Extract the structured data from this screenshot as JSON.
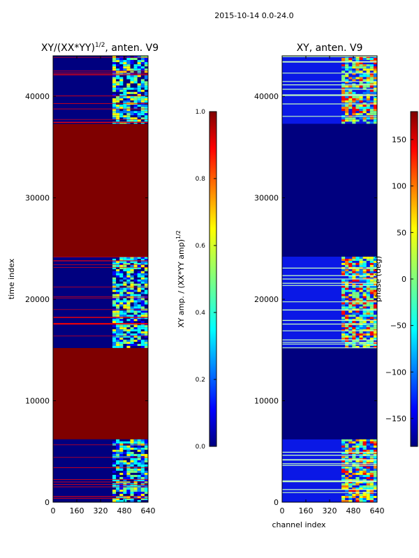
{
  "suptitle": "2015-10-14 0.0-24.0",
  "colors": {
    "jet": [
      "#00007f",
      "#0000ff",
      "#007fff",
      "#00ffff",
      "#7fff7f",
      "#ffff00",
      "#ff7f00",
      "#ff0000",
      "#7f0000"
    ]
  },
  "chart_data": [
    {
      "type": "heatmap",
      "title_text": "XY/(XX*YY)",
      "title_exponent": "1/2",
      "title_suffix": ", anten. V9",
      "xlabel": "",
      "ylabel": "time index",
      "xlim": [
        0,
        640
      ],
      "ylim": [
        0,
        44000
      ],
      "xticks": [
        0,
        160,
        320,
        480,
        640
      ],
      "yticks": [
        0,
        10000,
        20000,
        30000,
        40000
      ],
      "flagged_value": 1.0,
      "segments": [
        {
          "t0": 0,
          "t1": 6200,
          "kind": "data"
        },
        {
          "t0": 6200,
          "t1": 15200,
          "kind": "flagged"
        },
        {
          "t0": 15200,
          "t1": 24200,
          "kind": "data"
        },
        {
          "t0": 24200,
          "t1": 37300,
          "kind": "flagged"
        },
        {
          "t0": 37300,
          "t1": 44000,
          "kind": "data"
        }
      ],
      "active_channels": [
        400,
        640
      ],
      "colorbar": {
        "label_text": "XY amp. / (XX*YY amp)",
        "label_exponent": "1/2",
        "range": [
          0.0,
          1.0
        ],
        "ticks": [
          "0.0",
          "0.2",
          "0.4",
          "0.6",
          "0.8",
          "1.0"
        ]
      }
    },
    {
      "type": "heatmap",
      "title": "XY, anten. V9",
      "xlabel": "channel index",
      "ylabel": "",
      "xlim": [
        0,
        640
      ],
      "ylim": [
        0,
        44000
      ],
      "xticks": [
        0,
        160,
        320,
        480,
        640
      ],
      "yticks": [
        0,
        10000,
        20000,
        30000,
        40000
      ],
      "segments": [
        {
          "t0": 0,
          "t1": 6200,
          "kind": "data"
        },
        {
          "t0": 6200,
          "t1": 15200,
          "kind": "flagged"
        },
        {
          "t0": 15200,
          "t1": 24200,
          "kind": "data"
        },
        {
          "t0": 24200,
          "t1": 37300,
          "kind": "flagged"
        },
        {
          "t0": 37300,
          "t1": 44000,
          "kind": "data"
        }
      ],
      "active_channels": [
        400,
        640
      ],
      "colorbar": {
        "label_text": "phase (deg)",
        "range": [
          -180,
          180
        ],
        "ticks": [
          "−150",
          "−100",
          "−50",
          "0",
          "50",
          "100",
          "150"
        ],
        "tick_values": [
          -150,
          -100,
          -50,
          0,
          50,
          100,
          150
        ]
      }
    }
  ]
}
